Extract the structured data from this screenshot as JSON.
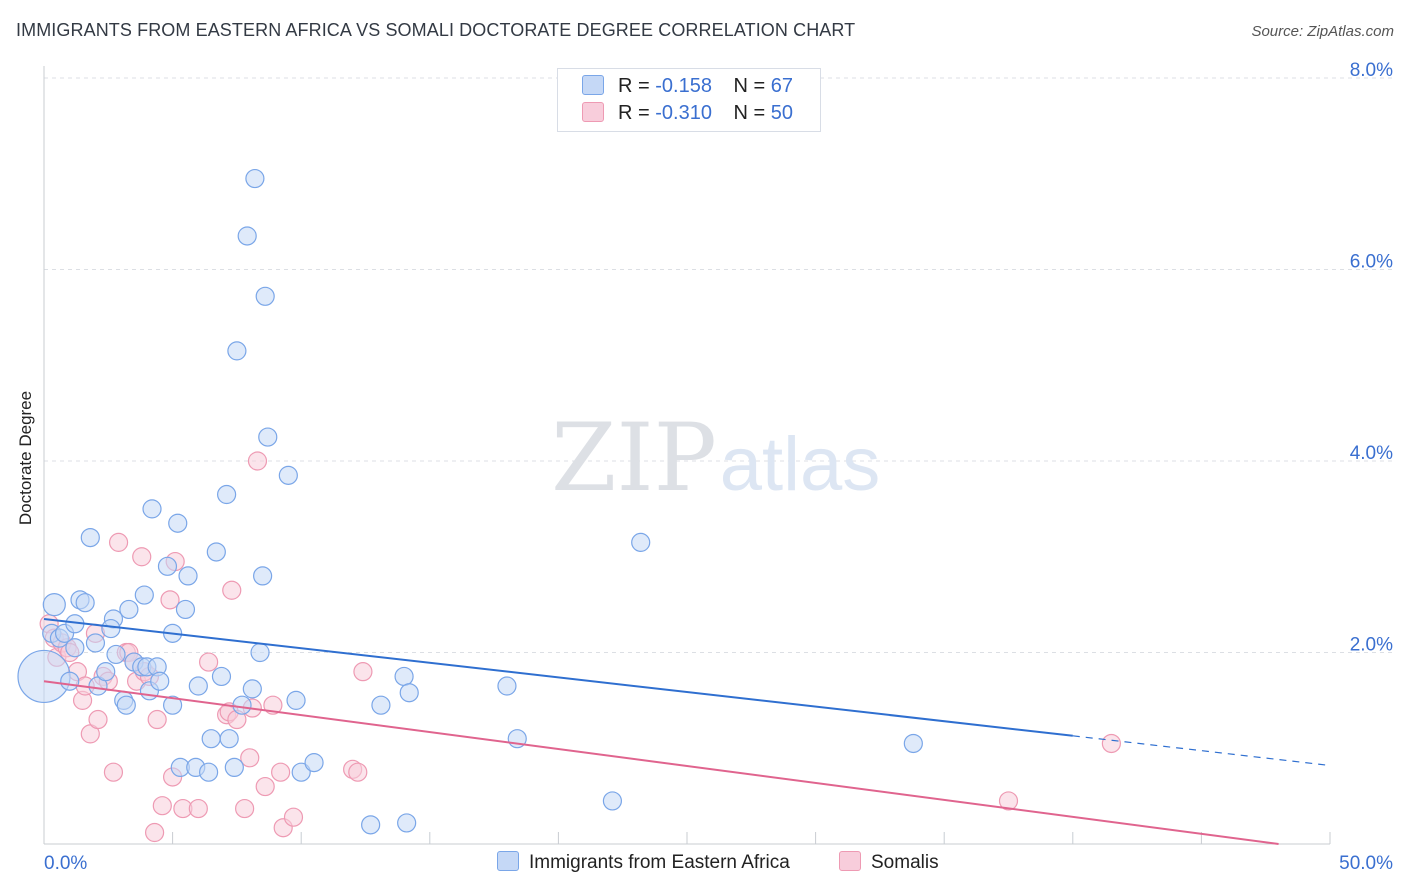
{
  "title": "IMMIGRANTS FROM EASTERN AFRICA VS SOMALI DOCTORATE DEGREE CORRELATION CHART",
  "source": "Source: ZipAtlas.com",
  "watermark": {
    "zip": "ZIP",
    "atlas": "atlas"
  },
  "stats": [
    {
      "r_label": "R =",
      "r_value": "-0.158",
      "n_label": "N =",
      "n_value": "67"
    },
    {
      "r_label": "R =",
      "r_value": "-0.310",
      "n_label": "N =",
      "n_value": "50"
    }
  ],
  "legend": [
    {
      "label": "Immigrants from Eastern Africa"
    },
    {
      "label": "Somalis"
    }
  ],
  "chart_data": {
    "type": "scatter",
    "title": "IMMIGRANTS FROM EASTERN AFRICA VS SOMALI DOCTORATE DEGREE CORRELATION CHART",
    "xlabel": "",
    "ylabel": "Doctorate Degree",
    "xlim": [
      0,
      50
    ],
    "ylim": [
      0,
      8
    ],
    "x_tick_labels": {
      "left": "0.0%",
      "right": "50.0%"
    },
    "y_ticks": [
      {
        "value": 2,
        "label": "2.0%"
      },
      {
        "value": 4,
        "label": "4.0%"
      },
      {
        "value": 6,
        "label": "6.0%"
      },
      {
        "value": 8,
        "label": "8.0%"
      }
    ],
    "grid": true,
    "series": [
      {
        "name": "Immigrants from Eastern Africa",
        "color": "#7aa6e8",
        "fill": "#c5d8f6",
        "line_color": "#2f6fd0",
        "r": -0.158,
        "n": 67,
        "trend": {
          "x0": 0,
          "y0": 2.35,
          "x1": 40,
          "y1": 1.13,
          "dash_to_x": 50,
          "dash_to_y": 0.82
        },
        "points": [
          [
            0.0,
            1.75,
            26
          ],
          [
            0.4,
            2.5,
            11
          ],
          [
            0.3,
            2.2,
            9
          ],
          [
            0.6,
            2.15,
            9
          ],
          [
            0.8,
            2.2,
            9
          ],
          [
            1.2,
            2.3,
            9
          ],
          [
            1.4,
            2.55,
            9
          ],
          [
            1.6,
            2.52,
            9
          ],
          [
            1.2,
            2.05,
            9
          ],
          [
            1.0,
            1.7,
            9
          ],
          [
            1.8,
            3.2,
            9
          ],
          [
            2.0,
            2.1,
            9
          ],
          [
            2.1,
            1.65,
            9
          ],
          [
            2.4,
            1.8,
            9
          ],
          [
            2.7,
            2.35,
            9
          ],
          [
            2.6,
            2.25,
            9
          ],
          [
            2.8,
            1.98,
            9
          ],
          [
            3.1,
            1.5,
            9
          ],
          [
            3.2,
            1.45,
            9
          ],
          [
            3.3,
            2.45,
            9
          ],
          [
            3.5,
            1.9,
            9
          ],
          [
            3.8,
            1.85,
            9
          ],
          [
            3.9,
            2.6,
            9
          ],
          [
            4.0,
            1.85,
            9
          ],
          [
            4.1,
            1.6,
            9
          ],
          [
            4.2,
            3.5,
            9
          ],
          [
            4.4,
            1.85,
            9
          ],
          [
            4.5,
            1.7,
            9
          ],
          [
            4.8,
            2.9,
            9
          ],
          [
            5.0,
            1.45,
            9
          ],
          [
            5.0,
            2.2,
            9
          ],
          [
            5.2,
            3.35,
            9
          ],
          [
            5.3,
            0.8,
            9
          ],
          [
            5.5,
            2.45,
            9
          ],
          [
            5.6,
            2.8,
            9
          ],
          [
            5.9,
            0.8,
            9
          ],
          [
            6.0,
            1.65,
            9
          ],
          [
            6.4,
            0.75,
            9
          ],
          [
            6.5,
            1.1,
            9
          ],
          [
            6.7,
            3.05,
            9
          ],
          [
            6.9,
            1.75,
            9
          ],
          [
            7.1,
            3.65,
            9
          ],
          [
            7.2,
            1.1,
            9
          ],
          [
            7.4,
            0.8,
            9
          ],
          [
            7.5,
            5.15,
            9
          ],
          [
            7.7,
            1.45,
            9
          ],
          [
            7.9,
            6.35,
            9
          ],
          [
            8.1,
            1.62,
            9
          ],
          [
            8.2,
            6.95,
            9
          ],
          [
            8.4,
            2.0,
            9
          ],
          [
            8.5,
            2.8,
            9
          ],
          [
            8.6,
            5.72,
            9
          ],
          [
            8.7,
            4.25,
            9
          ],
          [
            9.5,
            3.85,
            9
          ],
          [
            9.8,
            1.5,
            9
          ],
          [
            10.0,
            0.75,
            9
          ],
          [
            10.5,
            0.85,
            9
          ],
          [
            12.7,
            0.2,
            9
          ],
          [
            13.1,
            1.45,
            9
          ],
          [
            14.0,
            1.75,
            9
          ],
          [
            14.1,
            0.22,
            9
          ],
          [
            14.2,
            1.58,
            9
          ],
          [
            18.0,
            1.65,
            9
          ],
          [
            18.4,
            1.1,
            9
          ],
          [
            22.1,
            0.45,
            9
          ],
          [
            23.2,
            3.15,
            9
          ],
          [
            33.8,
            1.05,
            9
          ]
        ]
      },
      {
        "name": "Somalis",
        "color": "#ee9ab3",
        "fill": "#f8cddb",
        "line_color": "#e0648e",
        "r": -0.31,
        "n": 50,
        "trend": {
          "x0": 0,
          "y0": 1.7,
          "x1": 48,
          "y1": 0.0
        },
        "points": [
          [
            0.2,
            2.3,
            9
          ],
          [
            0.4,
            2.15,
            9
          ],
          [
            0.5,
            1.95,
            9
          ],
          [
            0.7,
            2.1,
            9
          ],
          [
            0.9,
            2.05,
            9
          ],
          [
            1.0,
            2.0,
            9
          ],
          [
            1.3,
            1.8,
            9
          ],
          [
            1.5,
            1.5,
            9
          ],
          [
            1.6,
            1.65,
            9
          ],
          [
            1.8,
            1.15,
            9
          ],
          [
            2.0,
            2.2,
            9
          ],
          [
            2.1,
            1.3,
            9
          ],
          [
            2.3,
            1.75,
            9
          ],
          [
            2.5,
            1.7,
            9
          ],
          [
            2.7,
            0.75,
            9
          ],
          [
            2.9,
            3.15,
            9
          ],
          [
            3.2,
            2.0,
            9
          ],
          [
            3.3,
            2.0,
            9
          ],
          [
            3.5,
            1.9,
            9
          ],
          [
            3.6,
            1.7,
            9
          ],
          [
            3.8,
            3.0,
            9
          ],
          [
            3.9,
            1.8,
            9
          ],
          [
            4.1,
            1.75,
            9
          ],
          [
            4.3,
            0.12,
            9
          ],
          [
            4.4,
            1.3,
            9
          ],
          [
            4.6,
            0.4,
            9
          ],
          [
            4.9,
            2.55,
            9
          ],
          [
            5.0,
            0.7,
            9
          ],
          [
            5.1,
            2.95,
            9
          ],
          [
            5.4,
            0.37,
            9
          ],
          [
            6.0,
            0.37,
            9
          ],
          [
            6.4,
            1.9,
            9
          ],
          [
            7.1,
            1.35,
            9
          ],
          [
            7.2,
            1.38,
            9
          ],
          [
            7.3,
            2.65,
            9
          ],
          [
            7.5,
            1.3,
            9
          ],
          [
            7.8,
            0.37,
            9
          ],
          [
            8.0,
            0.9,
            9
          ],
          [
            8.1,
            1.42,
            9
          ],
          [
            8.3,
            4.0,
            9
          ],
          [
            8.6,
            0.6,
            9
          ],
          [
            8.9,
            1.45,
            9
          ],
          [
            9.2,
            0.75,
            9
          ],
          [
            9.3,
            0.17,
            9
          ],
          [
            9.7,
            0.28,
            9
          ],
          [
            12.0,
            0.78,
            9
          ],
          [
            12.2,
            0.75,
            9
          ],
          [
            12.4,
            1.8,
            9
          ],
          [
            37.5,
            0.45,
            9
          ],
          [
            41.5,
            1.05,
            9
          ]
        ]
      }
    ]
  }
}
